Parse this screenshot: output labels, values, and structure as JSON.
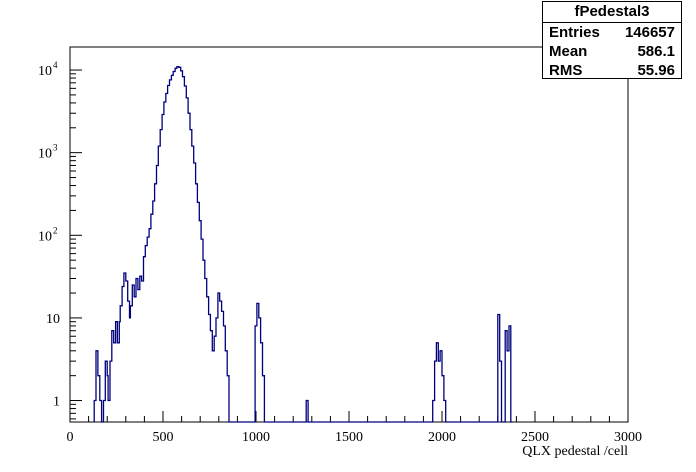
{
  "stats": {
    "title": "fPedestal3",
    "rows": [
      {
        "label": "Entries",
        "value": "146657"
      },
      {
        "label": "Mean",
        "value": "586.1"
      },
      {
        "label": "RMS",
        "value": "55.96"
      }
    ]
  },
  "colors": {
    "line": "#00007f",
    "axis": "#000000"
  },
  "chart_data": {
    "type": "line",
    "title": "",
    "xlabel": "QLX pedestal /cell",
    "ylabel": "",
    "xlim": [
      0,
      3000
    ],
    "ylim_log": [
      0.55,
      19000
    ],
    "y_scale": "log",
    "grid": false,
    "x_ticks": [
      {
        "v": 0,
        "label": "0"
      },
      {
        "v": 500,
        "label": "500"
      },
      {
        "v": 1000,
        "label": "1000"
      },
      {
        "v": 1500,
        "label": "1500"
      },
      {
        "v": 2000,
        "label": "2000"
      },
      {
        "v": 2500,
        "label": "2500"
      },
      {
        "v": 3000,
        "label": "3000"
      }
    ],
    "y_ticks": [
      {
        "v": 1,
        "base": "1",
        "exp": ""
      },
      {
        "v": 10,
        "base": "10",
        "exp": ""
      },
      {
        "v": 100,
        "base": "10",
        "exp": "2"
      },
      {
        "v": 1000,
        "base": "10",
        "exp": "3"
      },
      {
        "v": 10000,
        "base": "10",
        "exp": "4"
      }
    ],
    "series": [
      {
        "style": "step",
        "points": [
          [
            130,
            1
          ],
          [
            140,
            4
          ],
          [
            150,
            2
          ],
          [
            160,
            1
          ],
          [
            180,
            1
          ],
          [
            190,
            3
          ],
          [
            200,
            2
          ],
          [
            205,
            1
          ],
          [
            215,
            3
          ],
          [
            225,
            7
          ],
          [
            235,
            5
          ],
          [
            245,
            9
          ],
          [
            255,
            5
          ],
          [
            265,
            9
          ],
          [
            270,
            14
          ],
          [
            280,
            24
          ],
          [
            290,
            35
          ],
          [
            300,
            28
          ],
          [
            310,
            16
          ],
          [
            320,
            10
          ],
          [
            325,
            14
          ],
          [
            335,
            25
          ],
          [
            345,
            18
          ],
          [
            355,
            30
          ],
          [
            365,
            22
          ],
          [
            375,
            32
          ],
          [
            385,
            28
          ],
          [
            395,
            55
          ],
          [
            405,
            75
          ],
          [
            415,
            95
          ],
          [
            425,
            120
          ],
          [
            435,
            180
          ],
          [
            445,
            260
          ],
          [
            455,
            420
          ],
          [
            465,
            700
          ],
          [
            475,
            1200
          ],
          [
            485,
            1900
          ],
          [
            495,
            2900
          ],
          [
            505,
            4100
          ],
          [
            515,
            5200
          ],
          [
            525,
            6500
          ],
          [
            535,
            7600
          ],
          [
            545,
            8600
          ],
          [
            555,
            9600
          ],
          [
            565,
            10500
          ],
          [
            575,
            11000
          ],
          [
            585,
            10800
          ],
          [
            595,
            9800
          ],
          [
            605,
            8300
          ],
          [
            615,
            6400
          ],
          [
            625,
            4600
          ],
          [
            635,
            3000
          ],
          [
            645,
            1900
          ],
          [
            655,
            1200
          ],
          [
            665,
            750
          ],
          [
            675,
            420
          ],
          [
            685,
            250
          ],
          [
            695,
            150
          ],
          [
            705,
            90
          ],
          [
            715,
            50
          ],
          [
            725,
            30
          ],
          [
            735,
            18
          ],
          [
            745,
            11
          ],
          [
            755,
            7
          ],
          [
            765,
            4
          ],
          [
            775,
            6
          ],
          [
            785,
            10
          ],
          [
            795,
            20
          ],
          [
            805,
            16
          ],
          [
            815,
            12
          ],
          [
            825,
            8
          ],
          [
            835,
            4
          ],
          [
            845,
            2
          ],
          [
            855,
            0
          ],
          [
            995,
            8
          ],
          [
            1005,
            15
          ],
          [
            1015,
            10
          ],
          [
            1025,
            5
          ],
          [
            1035,
            2
          ],
          [
            1045,
            0
          ],
          [
            1270,
            1
          ],
          [
            1285,
            0
          ],
          [
            1950,
            1
          ],
          [
            1960,
            3
          ],
          [
            1970,
            5
          ],
          [
            1980,
            3
          ],
          [
            1990,
            4
          ],
          [
            2000,
            2
          ],
          [
            2010,
            1
          ],
          [
            2020,
            0
          ],
          [
            2300,
            11
          ],
          [
            2310,
            3
          ],
          [
            2320,
            0
          ],
          [
            2340,
            7
          ],
          [
            2350,
            4
          ],
          [
            2360,
            8
          ],
          [
            2370,
            0
          ]
        ]
      }
    ]
  }
}
